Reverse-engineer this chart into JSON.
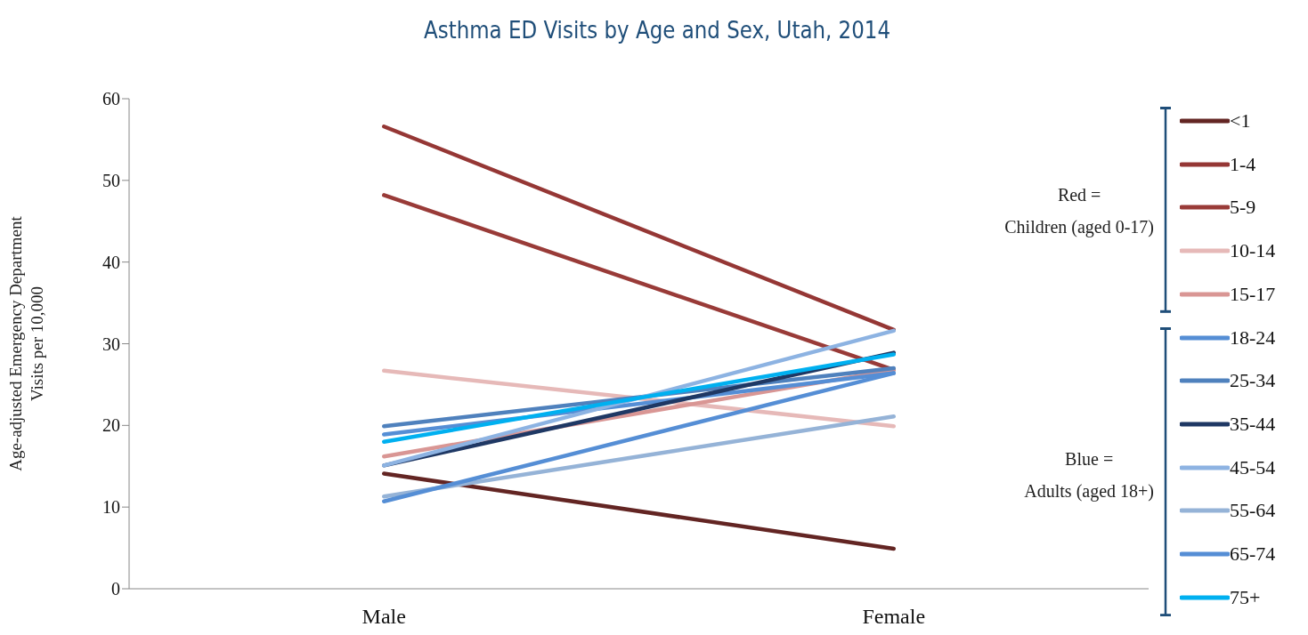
{
  "chart_data": {
    "type": "line",
    "title": "Asthma ED Visits by Age and Sex, Utah, 2014",
    "ylabel": "Age-adjusted Emergency Department\nVisits per 10,000",
    "categories": [
      "Male",
      "Female"
    ],
    "series": [
      {
        "name": "<1",
        "color": "#632523",
        "values": [
          14.1,
          4.9
        ]
      },
      {
        "name": "1-4",
        "color": "#953735",
        "values": [
          56.6,
          31.7
        ]
      },
      {
        "name": "5-9",
        "color": "#993b38",
        "values": [
          48.2,
          26.8
        ]
      },
      {
        "name": "10-14",
        "color": "#e6b9b8",
        "values": [
          26.7,
          19.9
        ]
      },
      {
        "name": "15-17",
        "color": "#d99694",
        "values": [
          16.2,
          26.8
        ]
      },
      {
        "name": "18-24",
        "color": "#558ed5",
        "values": [
          18.9,
          26.4
        ]
      },
      {
        "name": "25-34",
        "color": "#4f81bd",
        "values": [
          19.9,
          27.0
        ]
      },
      {
        "name": "35-44",
        "color": "#1f3864",
        "values": [
          15.1,
          28.9
        ]
      },
      {
        "name": "45-54",
        "color": "#8db3e2",
        "values": [
          15.1,
          31.6
        ]
      },
      {
        "name": "55-64",
        "color": "#95b3d7",
        "values": [
          11.3,
          21.1
        ]
      },
      {
        "name": "65-74",
        "color": "#558ed5",
        "values": [
          10.7,
          26.4
        ]
      },
      {
        "name": "75+",
        "color": "#00b0f0",
        "values": [
          18.0,
          28.7
        ]
      }
    ],
    "annotations": [
      "Red =\nChildren (aged 0-17)",
      "Blue =\nAdults (aged 18+)"
    ],
    "ylim": [
      0,
      60
    ],
    "yticks": [
      0,
      10,
      20,
      30,
      40,
      50,
      60
    ],
    "grid": false,
    "legend": "right",
    "marker": "none",
    "line_style": "solid"
  }
}
